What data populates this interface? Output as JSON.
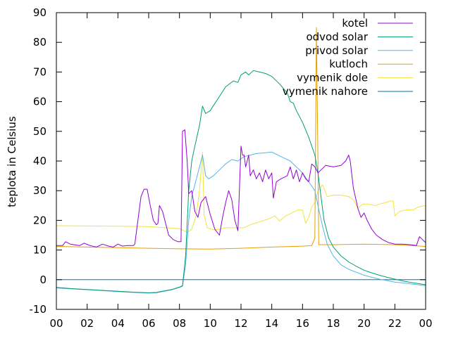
{
  "chart_data": {
    "type": "line",
    "ylabel": "teplota in Celsius",
    "ylim": [
      -10,
      90
    ],
    "xlim": [
      0,
      24
    ],
    "y_ticks": [
      "-10",
      "0",
      "10",
      "20",
      "30",
      "40",
      "50",
      "60",
      "70",
      "80",
      "90"
    ],
    "x_ticks": [
      "00",
      "02",
      "04",
      "06",
      "08",
      "10",
      "12",
      "14",
      "16",
      "18",
      "20",
      "22",
      "00"
    ],
    "grid": false,
    "legend_position": "top-right",
    "series": [
      {
        "name": "kotel",
        "color": "#9400d3",
        "points": [
          [
            0,
            11.5
          ],
          [
            0.4,
            11.5
          ],
          [
            0.6,
            12.8
          ],
          [
            0.9,
            12
          ],
          [
            1.5,
            11.5
          ],
          [
            1.8,
            12.3
          ],
          [
            2.2,
            11.5
          ],
          [
            2.6,
            11
          ],
          [
            3,
            12
          ],
          [
            3.4,
            11.3
          ],
          [
            3.7,
            11
          ],
          [
            4,
            12
          ],
          [
            4.3,
            11.3
          ],
          [
            4.6,
            11.5
          ],
          [
            5,
            11.5
          ],
          [
            5.1,
            12
          ],
          [
            5.3,
            20
          ],
          [
            5.5,
            28
          ],
          [
            5.7,
            30.5
          ],
          [
            5.9,
            30.5
          ],
          [
            6.1,
            25
          ],
          [
            6.3,
            20
          ],
          [
            6.5,
            18.5
          ],
          [
            6.6,
            19
          ],
          [
            6.7,
            25
          ],
          [
            6.9,
            23
          ],
          [
            7.1,
            19
          ],
          [
            7.3,
            15
          ],
          [
            7.6,
            13.5
          ],
          [
            7.9,
            12.8
          ],
          [
            8.1,
            12.8
          ],
          [
            8.2,
            50
          ],
          [
            8.35,
            50.5
          ],
          [
            8.5,
            40
          ],
          [
            8.6,
            29
          ],
          [
            8.8,
            30
          ],
          [
            9,
            23
          ],
          [
            9.2,
            21
          ],
          [
            9.4,
            26
          ],
          [
            9.7,
            28
          ],
          [
            10,
            22
          ],
          [
            10.3,
            17
          ],
          [
            10.6,
            15
          ],
          [
            10.8,
            21
          ],
          [
            11,
            26
          ],
          [
            11.2,
            30
          ],
          [
            11.4,
            27
          ],
          [
            11.6,
            20
          ],
          [
            11.8,
            16.5
          ],
          [
            12,
            45
          ],
          [
            12.1,
            42
          ],
          [
            12.2,
            42
          ],
          [
            12.3,
            38
          ],
          [
            12.5,
            42
          ],
          [
            12.6,
            35
          ],
          [
            12.8,
            37
          ],
          [
            13,
            34
          ],
          [
            13.2,
            36
          ],
          [
            13.4,
            33
          ],
          [
            13.6,
            37
          ],
          [
            13.8,
            34
          ],
          [
            14,
            36
          ],
          [
            14.1,
            27.5
          ],
          [
            14.3,
            33
          ],
          [
            14.6,
            34
          ],
          [
            15,
            35
          ],
          [
            15.2,
            38
          ],
          [
            15.4,
            34
          ],
          [
            15.6,
            37
          ],
          [
            15.8,
            33
          ],
          [
            16,
            36
          ],
          [
            16.2,
            34
          ],
          [
            16.4,
            33
          ],
          [
            16.6,
            39
          ],
          [
            16.8,
            38
          ],
          [
            17,
            36
          ],
          [
            17.2,
            37
          ],
          [
            17.5,
            38.5
          ],
          [
            18,
            38
          ],
          [
            18.5,
            38.5
          ],
          [
            18.8,
            40
          ],
          [
            19,
            42
          ],
          [
            19.1,
            40
          ],
          [
            19.3,
            31
          ],
          [
            19.6,
            24
          ],
          [
            19.8,
            21
          ],
          [
            20,
            22.5
          ],
          [
            20.2,
            20
          ],
          [
            20.5,
            17
          ],
          [
            20.8,
            15
          ],
          [
            21.2,
            13.5
          ],
          [
            21.6,
            12.5
          ],
          [
            22,
            12
          ],
          [
            22.5,
            12
          ],
          [
            23,
            11.8
          ],
          [
            23.4,
            11.5
          ],
          [
            23.6,
            14.5
          ],
          [
            23.8,
            13.5
          ],
          [
            24,
            12.5
          ]
        ]
      },
      {
        "name": "odvod solar",
        "color": "#009e73",
        "points": [
          [
            0,
            -2.6
          ],
          [
            1,
            -3
          ],
          [
            2,
            -3.3
          ],
          [
            3,
            -3.6
          ],
          [
            4,
            -3.9
          ],
          [
            5,
            -4.2
          ],
          [
            6,
            -4.4
          ],
          [
            6.5,
            -4.3
          ],
          [
            7,
            -3.8
          ],
          [
            7.5,
            -3.3
          ],
          [
            8,
            -2.5
          ],
          [
            8.2,
            -2
          ],
          [
            8.4,
            8
          ],
          [
            8.6,
            30
          ],
          [
            8.8,
            40
          ],
          [
            9,
            45
          ],
          [
            9.3,
            52
          ],
          [
            9.5,
            58.5
          ],
          [
            9.7,
            56
          ],
          [
            10,
            57
          ],
          [
            10.5,
            61
          ],
          [
            11,
            65
          ],
          [
            11.5,
            67
          ],
          [
            11.8,
            66.5
          ],
          [
            12,
            69
          ],
          [
            12.3,
            70
          ],
          [
            12.5,
            69
          ],
          [
            12.8,
            70.5
          ],
          [
            13.2,
            70
          ],
          [
            13.6,
            69.5
          ],
          [
            14,
            68.5
          ],
          [
            14.5,
            66
          ],
          [
            15,
            63
          ],
          [
            15.2,
            60
          ],
          [
            15.4,
            59.5
          ],
          [
            15.6,
            57
          ],
          [
            16,
            53
          ],
          [
            16.4,
            48
          ],
          [
            16.8,
            42
          ],
          [
            17,
            36
          ],
          [
            17.2,
            28
          ],
          [
            17.4,
            20
          ],
          [
            17.7,
            14
          ],
          [
            18,
            11
          ],
          [
            18.5,
            8
          ],
          [
            19,
            6
          ],
          [
            19.5,
            4.5
          ],
          [
            20,
            3.2
          ],
          [
            20.5,
            2.3
          ],
          [
            21,
            1.5
          ],
          [
            21.5,
            0.8
          ],
          [
            22,
            0.2
          ],
          [
            22.5,
            -0.4
          ],
          [
            23,
            -0.9
          ],
          [
            23.5,
            -1.3
          ],
          [
            24,
            -1.7
          ]
        ]
      },
      {
        "name": "privod solar",
        "color": "#56b4e9",
        "points": [
          [
            0,
            -2.8
          ],
          [
            1,
            -3.1
          ],
          [
            2,
            -3.4
          ],
          [
            3,
            -3.7
          ],
          [
            4,
            -4
          ],
          [
            5,
            -4.3
          ],
          [
            6,
            -4.5
          ],
          [
            6.5,
            -4.4
          ],
          [
            7,
            -3.9
          ],
          [
            7.5,
            -3.4
          ],
          [
            8,
            -2.6
          ],
          [
            8.2,
            -2.2
          ],
          [
            8.4,
            5
          ],
          [
            8.6,
            20
          ],
          [
            8.8,
            28
          ],
          [
            9,
            32
          ],
          [
            9.3,
            38
          ],
          [
            9.5,
            42
          ],
          [
            9.7,
            35
          ],
          [
            9.9,
            34
          ],
          [
            10.2,
            35
          ],
          [
            10.6,
            37
          ],
          [
            11,
            39
          ],
          [
            11.4,
            40.5
          ],
          [
            11.8,
            40
          ],
          [
            12.2,
            41.5
          ],
          [
            12.6,
            42
          ],
          [
            13,
            42.5
          ],
          [
            13.6,
            42.8
          ],
          [
            14,
            43
          ],
          [
            14.4,
            42
          ],
          [
            14.8,
            41
          ],
          [
            15.2,
            40
          ],
          [
            15.6,
            38
          ],
          [
            16,
            36
          ],
          [
            16.4,
            33
          ],
          [
            16.8,
            30
          ],
          [
            17,
            25
          ],
          [
            17.3,
            18
          ],
          [
            17.6,
            12
          ],
          [
            18,
            8
          ],
          [
            18.5,
            5
          ],
          [
            19,
            3.5
          ],
          [
            19.5,
            2.5
          ],
          [
            20,
            1.5
          ],
          [
            20.5,
            0.8
          ],
          [
            21,
            0.2
          ],
          [
            21.5,
            -0.3
          ],
          [
            22,
            -0.8
          ],
          [
            22.5,
            -1.1
          ],
          [
            23,
            -1.4
          ],
          [
            23.5,
            -1.7
          ],
          [
            24,
            -2
          ]
        ]
      },
      {
        "name": "kutloch",
        "color": "#e69f00",
        "points": [
          [
            0,
            11.2
          ],
          [
            2,
            11
          ],
          [
            4,
            10.8
          ],
          [
            6,
            10.6
          ],
          [
            8,
            10.4
          ],
          [
            10,
            10.3
          ],
          [
            12,
            10.6
          ],
          [
            14,
            11
          ],
          [
            16,
            11.3
          ],
          [
            16.6,
            11.5
          ],
          [
            16.8,
            14
          ],
          [
            16.9,
            85
          ],
          [
            17,
            40
          ],
          [
            17.05,
            11.8
          ],
          [
            18,
            11.8
          ],
          [
            20,
            12
          ],
          [
            22,
            11.8
          ],
          [
            24,
            11.2
          ]
        ]
      },
      {
        "name": "vymenik dole",
        "color": "#f0e442",
        "points": [
          [
            0,
            18.2
          ],
          [
            2,
            18.1
          ],
          [
            4,
            18
          ],
          [
            6,
            17.9
          ],
          [
            8,
            17.2
          ],
          [
            8.5,
            16
          ],
          [
            8.8,
            17
          ],
          [
            9.1,
            22
          ],
          [
            9.3,
            30
          ],
          [
            9.5,
            43
          ],
          [
            9.6,
            22
          ],
          [
            9.8,
            17.5
          ],
          [
            10.2,
            16.8
          ],
          [
            10.6,
            17
          ],
          [
            11,
            17.5
          ],
          [
            11.4,
            17.5
          ],
          [
            11.8,
            17.5
          ],
          [
            12.2,
            17.5
          ],
          [
            12.6,
            18.5
          ],
          [
            13.2,
            19.5
          ],
          [
            13.8,
            20.5
          ],
          [
            14.2,
            21.5
          ],
          [
            14.5,
            19.8
          ],
          [
            14.9,
            21.5
          ],
          [
            15.3,
            22.5
          ],
          [
            15.7,
            23.5
          ],
          [
            16,
            23.5
          ],
          [
            16.2,
            19
          ],
          [
            16.4,
            21
          ],
          [
            16.6,
            24.5
          ],
          [
            16.8,
            26
          ],
          [
            17,
            30
          ],
          [
            17.3,
            32
          ],
          [
            17.6,
            28
          ],
          [
            18,
            28.5
          ],
          [
            18.5,
            28.5
          ],
          [
            19,
            28
          ],
          [
            19.3,
            27
          ],
          [
            19.6,
            24
          ],
          [
            19.9,
            25.5
          ],
          [
            20.3,
            25.5
          ],
          [
            20.7,
            25
          ],
          [
            21,
            25.5
          ],
          [
            21.4,
            26
          ],
          [
            21.7,
            26.5
          ],
          [
            21.9,
            26.5
          ],
          [
            22,
            21.5
          ],
          [
            22.3,
            23
          ],
          [
            22.7,
            23.5
          ],
          [
            23.2,
            23.5
          ],
          [
            23.5,
            24.5
          ],
          [
            24,
            25
          ]
        ]
      },
      {
        "name": "vymenik nahore",
        "color": "#0072b2",
        "points": [
          [
            0,
            0
          ],
          [
            24,
            0
          ]
        ]
      }
    ]
  }
}
